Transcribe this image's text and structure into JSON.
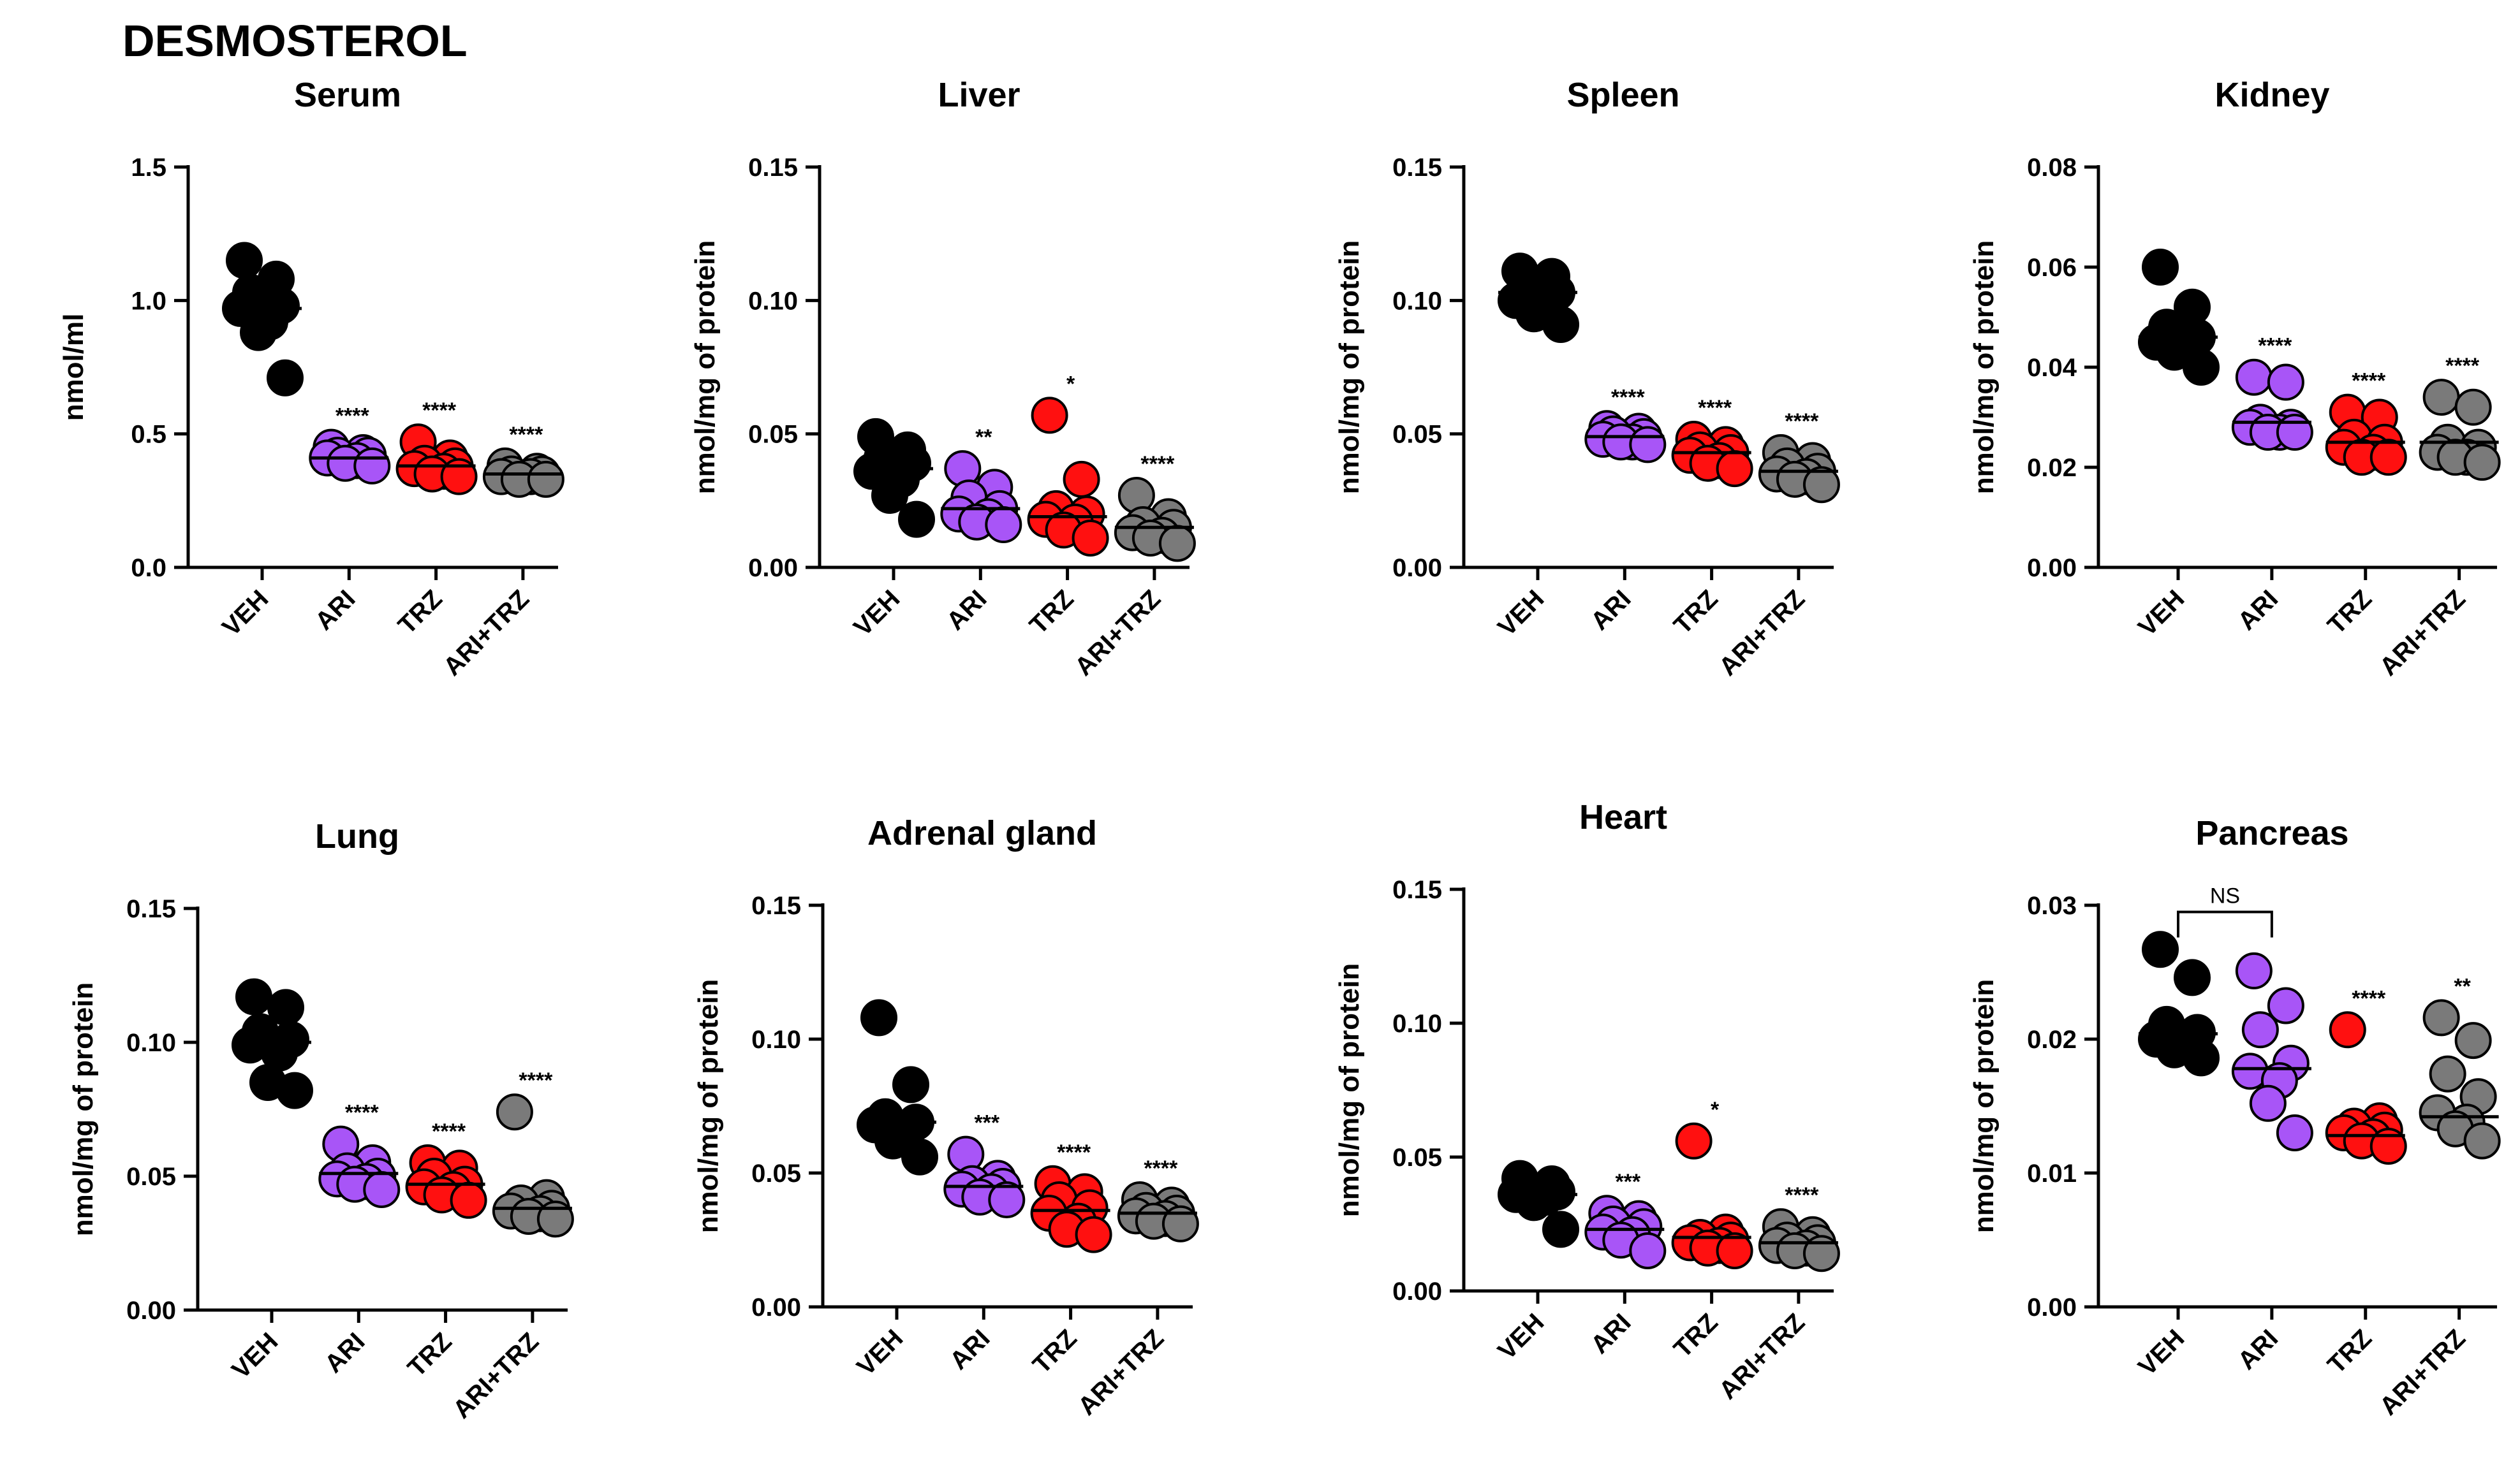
{
  "figure_title": "DESMOSTEROL",
  "group_colors": {
    "VEH": "#000000",
    "ARI": "#a855f7",
    "TRZ": "#ff1010",
    "ARI+TRZ": "#7a7a7a"
  },
  "chart_data": [
    {
      "type": "scatter",
      "title": "Serum",
      "ylabel": "nmol/ml",
      "ylim": [
        0,
        1.5
      ],
      "yticks": [
        "0.0",
        "0.5",
        "1.0",
        "1.5"
      ],
      "categories": [
        "VEH",
        "ARI",
        "TRZ",
        "ARI+TRZ"
      ],
      "series": [
        {
          "name": "VEH",
          "values": [
            1.15,
            1.08,
            1.03,
            0.98,
            0.92,
            0.88,
            0.97,
            0.71
          ],
          "mean": 0.97,
          "sig": ""
        },
        {
          "name": "ARI",
          "values": [
            0.45,
            0.43,
            0.42,
            0.41,
            0.4,
            0.39,
            0.38,
            0.42
          ],
          "mean": 0.41,
          "sig": "****"
        },
        {
          "name": "TRZ",
          "values": [
            0.47,
            0.41,
            0.39,
            0.37,
            0.36,
            0.35,
            0.34,
            0.38
          ],
          "mean": 0.38,
          "sig": "****"
        },
        {
          "name": "ARI+TRZ",
          "values": [
            0.38,
            0.36,
            0.35,
            0.34,
            0.34,
            0.33,
            0.33,
            0.35
          ],
          "mean": 0.35,
          "sig": "****"
        }
      ]
    },
    {
      "type": "scatter",
      "title": "Liver",
      "ylabel": "nmol/mg of protein",
      "ylim": [
        0,
        0.15
      ],
      "yticks": [
        "0.00",
        "0.05",
        "0.10",
        "0.15"
      ],
      "categories": [
        "VEH",
        "ARI",
        "TRZ",
        "ARI+TRZ"
      ],
      "series": [
        {
          "name": "VEH",
          "values": [
            0.049,
            0.044,
            0.041,
            0.039,
            0.036,
            0.033,
            0.027,
            0.018
          ],
          "mean": 0.037,
          "sig": ""
        },
        {
          "name": "ARI",
          "values": [
            0.037,
            0.03,
            0.026,
            0.022,
            0.02,
            0.019,
            0.017,
            0.016
          ],
          "mean": 0.022,
          "sig": "**"
        },
        {
          "name": "TRZ",
          "values": [
            0.057,
            0.033,
            0.022,
            0.02,
            0.018,
            0.017,
            0.014,
            0.011
          ],
          "mean": 0.019,
          "sig": "*"
        },
        {
          "name": "ARI+TRZ",
          "values": [
            0.027,
            0.019,
            0.016,
            0.015,
            0.013,
            0.012,
            0.011,
            0.009
          ],
          "mean": 0.015,
          "sig": "****"
        }
      ]
    },
    {
      "type": "scatter",
      "title": "Spleen",
      "ylabel": "nmol/mg of protein",
      "ylim": [
        0,
        0.15
      ],
      "yticks": [
        "0.00",
        "0.05",
        "0.10",
        "0.15"
      ],
      "categories": [
        "VEH",
        "ARI",
        "TRZ",
        "ARI+TRZ"
      ],
      "series": [
        {
          "name": "VEH",
          "values": [
            0.111,
            0.109,
            0.105,
            0.103,
            0.1,
            0.097,
            0.095,
            0.091
          ],
          "mean": 0.103,
          "sig": ""
        },
        {
          "name": "ARI",
          "values": [
            0.052,
            0.051,
            0.05,
            0.049,
            0.048,
            0.047,
            0.047,
            0.046
          ],
          "mean": 0.049,
          "sig": "****"
        },
        {
          "name": "TRZ",
          "values": [
            0.048,
            0.046,
            0.044,
            0.043,
            0.042,
            0.04,
            0.039,
            0.037
          ],
          "mean": 0.043,
          "sig": "****"
        },
        {
          "name": "ARI+TRZ",
          "values": [
            0.043,
            0.04,
            0.038,
            0.036,
            0.035,
            0.034,
            0.033,
            0.031
          ],
          "mean": 0.036,
          "sig": "****"
        }
      ]
    },
    {
      "type": "scatter",
      "title": "Kidney",
      "ylabel": "nmol/mg of protein",
      "ylim": [
        0,
        0.08
      ],
      "yticks": [
        "0.00",
        "0.02",
        "0.04",
        "0.06",
        "0.08"
      ],
      "categories": [
        "VEH",
        "ARI",
        "TRZ",
        "ARI+TRZ"
      ],
      "series": [
        {
          "name": "VEH",
          "values": [
            0.06,
            0.052,
            0.048,
            0.046,
            0.045,
            0.044,
            0.043,
            0.04
          ],
          "mean": 0.046,
          "sig": ""
        },
        {
          "name": "ARI",
          "values": [
            0.038,
            0.037,
            0.029,
            0.028,
            0.028,
            0.027,
            0.027,
            0.027
          ],
          "mean": 0.029,
          "sig": "****"
        },
        {
          "name": "TRZ",
          "values": [
            0.031,
            0.03,
            0.026,
            0.025,
            0.024,
            0.023,
            0.022,
            0.022
          ],
          "mean": 0.025,
          "sig": "****"
        },
        {
          "name": "ARI+TRZ",
          "values": [
            0.034,
            0.032,
            0.025,
            0.024,
            0.023,
            0.022,
            0.022,
            0.021
          ],
          "mean": 0.025,
          "sig": "****"
        }
      ]
    },
    {
      "type": "scatter",
      "title": "Lung",
      "ylabel": "nmol/mg of protein",
      "ylim": [
        0,
        0.15
      ],
      "yticks": [
        "0.00",
        "0.05",
        "0.10",
        "0.15"
      ],
      "categories": [
        "VEH",
        "ARI",
        "TRZ",
        "ARI+TRZ"
      ],
      "series": [
        {
          "name": "VEH",
          "values": [
            0.117,
            0.113,
            0.104,
            0.101,
            0.099,
            0.096,
            0.085,
            0.082
          ],
          "mean": 0.1,
          "sig": ""
        },
        {
          "name": "ARI",
          "values": [
            0.062,
            0.055,
            0.052,
            0.05,
            0.049,
            0.048,
            0.047,
            0.045
          ],
          "mean": 0.051,
          "sig": "****"
        },
        {
          "name": "TRZ",
          "values": [
            0.055,
            0.053,
            0.05,
            0.047,
            0.046,
            0.045,
            0.043,
            0.041
          ],
          "mean": 0.047,
          "sig": "****"
        },
        {
          "name": "ARI+TRZ",
          "values": [
            0.074,
            0.042,
            0.04,
            0.038,
            0.037,
            0.036,
            0.035,
            0.034
          ],
          "mean": 0.038,
          "sig": "****"
        }
      ]
    },
    {
      "type": "scatter",
      "title": "Adrenal gland",
      "ylabel": "nmol/mg of protein",
      "ylim": [
        0,
        0.15
      ],
      "yticks": [
        "0.00",
        "0.05",
        "0.10",
        "0.15"
      ],
      "categories": [
        "VEH",
        "ARI",
        "TRZ",
        "ARI+TRZ"
      ],
      "series": [
        {
          "name": "VEH",
          "values": [
            0.108,
            0.083,
            0.071,
            0.069,
            0.068,
            0.066,
            0.062,
            0.056
          ],
          "mean": 0.069,
          "sig": ""
        },
        {
          "name": "ARI",
          "values": [
            0.057,
            0.048,
            0.046,
            0.045,
            0.044,
            0.043,
            0.041,
            0.04
          ],
          "mean": 0.045,
          "sig": "***"
        },
        {
          "name": "TRZ",
          "values": [
            0.046,
            0.043,
            0.04,
            0.037,
            0.035,
            0.032,
            0.029,
            0.027
          ],
          "mean": 0.036,
          "sig": "****"
        },
        {
          "name": "ARI+TRZ",
          "values": [
            0.04,
            0.038,
            0.036,
            0.035,
            0.034,
            0.033,
            0.032,
            0.031
          ],
          "mean": 0.035,
          "sig": "****"
        }
      ]
    },
    {
      "type": "scatter",
      "title": "Heart",
      "ylabel": "nmol/mg of protein",
      "ylim": [
        0,
        0.15
      ],
      "yticks": [
        "0.00",
        "0.05",
        "0.10",
        "0.15"
      ],
      "categories": [
        "VEH",
        "ARI",
        "TRZ",
        "ARI+TRZ"
      ],
      "series": [
        {
          "name": "VEH",
          "values": [
            0.042,
            0.04,
            0.038,
            0.037,
            0.036,
            0.035,
            0.033,
            0.023
          ],
          "mean": 0.036,
          "sig": ""
        },
        {
          "name": "ARI",
          "values": [
            0.029,
            0.027,
            0.025,
            0.024,
            0.022,
            0.021,
            0.019,
            0.015
          ],
          "mean": 0.023,
          "sig": "***"
        },
        {
          "name": "TRZ",
          "values": [
            0.056,
            0.022,
            0.02,
            0.019,
            0.018,
            0.017,
            0.016,
            0.015
          ],
          "mean": 0.02,
          "sig": "*"
        },
        {
          "name": "ARI+TRZ",
          "values": [
            0.024,
            0.021,
            0.019,
            0.018,
            0.017,
            0.016,
            0.015,
            0.014
          ],
          "mean": 0.018,
          "sig": "****"
        }
      ]
    },
    {
      "type": "scatter",
      "title": "Pancreas",
      "ylabel": "nmol/mg of protein",
      "ylim": [
        0,
        0.03
      ],
      "yticks": [
        "0.00",
        "0.01",
        "0.02",
        "0.03"
      ],
      "categories": [
        "VEH",
        "ARI",
        "TRZ",
        "ARI+TRZ"
      ],
      "bracket": {
        "from": "VEH",
        "to": "ARI",
        "label": "NS",
        "y": 0.0295
      },
      "series": [
        {
          "name": "VEH",
          "values": [
            0.0267,
            0.0246,
            0.0211,
            0.0205,
            0.02,
            0.0197,
            0.0192,
            0.0186
          ],
          "mean": 0.0204,
          "sig": ""
        },
        {
          "name": "ARI",
          "values": [
            0.0251,
            0.0225,
            0.0207,
            0.0182,
            0.0176,
            0.0169,
            0.0152,
            0.013
          ],
          "mean": 0.0178,
          "sig": ""
        },
        {
          "name": "TRZ",
          "values": [
            0.0207,
            0.0139,
            0.0135,
            0.0132,
            0.013,
            0.0127,
            0.0124,
            0.012
          ],
          "mean": 0.0128,
          "sig": "****"
        },
        {
          "name": "ARI+TRZ",
          "values": [
            0.0216,
            0.0199,
            0.0174,
            0.0157,
            0.0145,
            0.0138,
            0.0133,
            0.0124
          ],
          "mean": 0.0142,
          "sig": "**"
        }
      ]
    }
  ]
}
